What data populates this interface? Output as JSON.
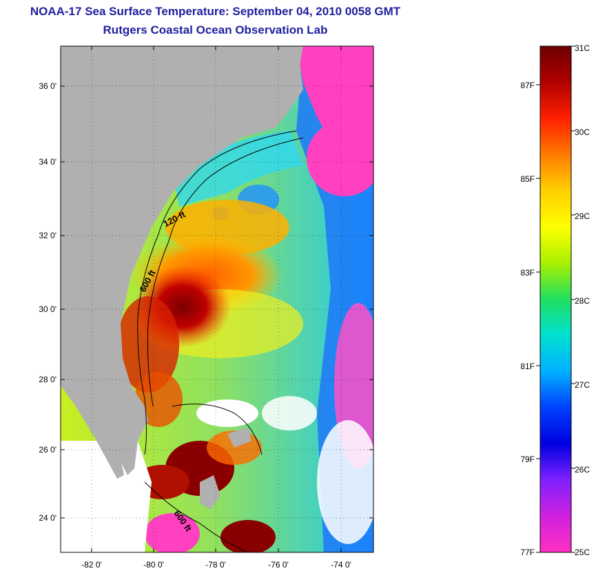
{
  "title": "NOAA-17 Sea Surface Temperature:  September 04, 2010 0058 GMT",
  "subtitle": "Rutgers Coastal Ocean Observation Lab",
  "lat_labels": [
    "36 0'",
    "34 0'",
    "32 0'",
    "30 0'",
    "28 0'",
    "26 0'",
    "24 0'"
  ],
  "lon_labels": [
    "-82 0'",
    "-80 0'",
    "-78 0'",
    "-76 0'",
    "-74 0'"
  ],
  "contour_labels": [
    "120 ft",
    "600 ft",
    "600 ft"
  ],
  "colorbar": {
    "celsius_labels": [
      "31C",
      "30C",
      "29C",
      "28C",
      "27C",
      "26C",
      "25C"
    ],
    "fahrenheit_labels": [
      "87F",
      "85F",
      "83F",
      "81F",
      "79F",
      "77F"
    ],
    "stops": [
      "#6e0000",
      "#b00000",
      "#ff2000",
      "#ff7a00",
      "#ffd000",
      "#ffff00",
      "#a8f000",
      "#20e060",
      "#00e0d0",
      "#00b0ff",
      "#0040ff",
      "#0000e0",
      "#8020ff",
      "#d020e0",
      "#ff30c0"
    ]
  },
  "colors": {
    "land": "#b0b0b0",
    "title_text": "#1f1f9e",
    "cloud": "#ffffff"
  }
}
